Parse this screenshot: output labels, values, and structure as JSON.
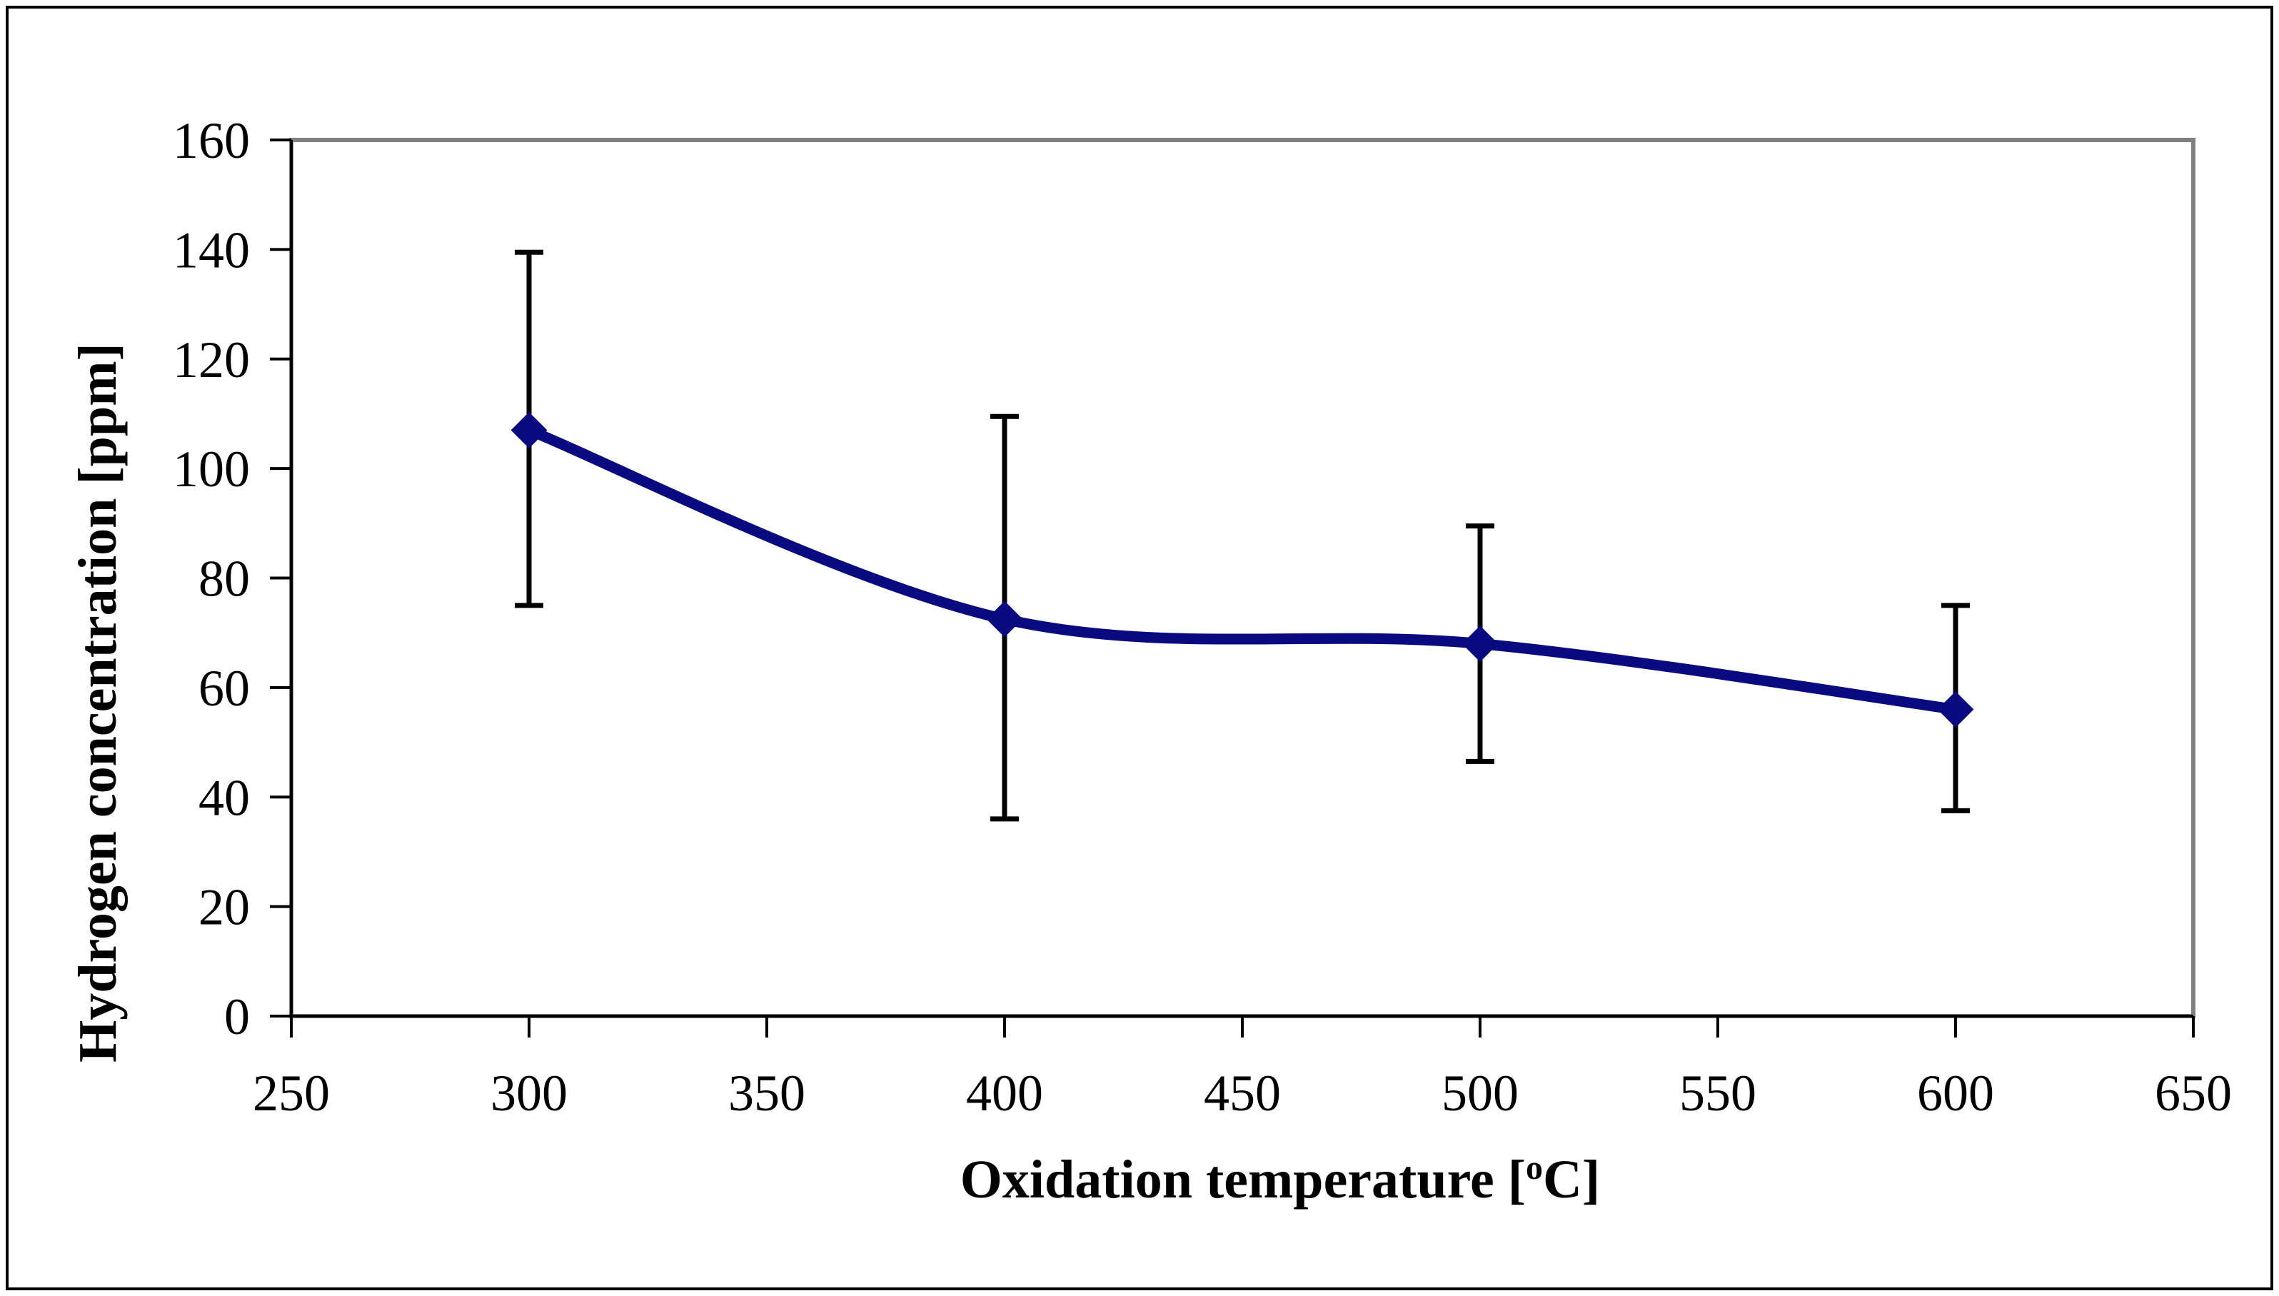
{
  "colors": {
    "series": "#0a0a80",
    "error_bars": "#000000",
    "axis": "#000000",
    "plot_border": "#808080",
    "frame": "#000000",
    "background": "#ffffff"
  },
  "chart_data": {
    "type": "line",
    "title": "",
    "xlabel": "Oxidation temperature [oC]",
    "xlabel_parts": {
      "before": "Oxidation temperature [",
      "superscript": "o",
      "after": "C]"
    },
    "ylabel": "Hydrogen concentration [ppm]",
    "xlim": [
      250,
      650
    ],
    "ylim": [
      0,
      160
    ],
    "x_ticks": [
      250,
      300,
      350,
      400,
      450,
      500,
      550,
      600,
      650
    ],
    "y_ticks": [
      0,
      20,
      40,
      60,
      80,
      100,
      120,
      140,
      160
    ],
    "smooth": true,
    "marker": "diamond",
    "grid": false,
    "series": [
      {
        "name": "Hydrogen concentration",
        "x": [
          300,
          400,
          500,
          600
        ],
        "y": [
          107,
          72.5,
          68,
          56
        ],
        "err_high": [
          139.5,
          109.5,
          89.5,
          75
        ],
        "err_low": [
          75,
          36,
          46.5,
          37.5
        ]
      }
    ]
  }
}
